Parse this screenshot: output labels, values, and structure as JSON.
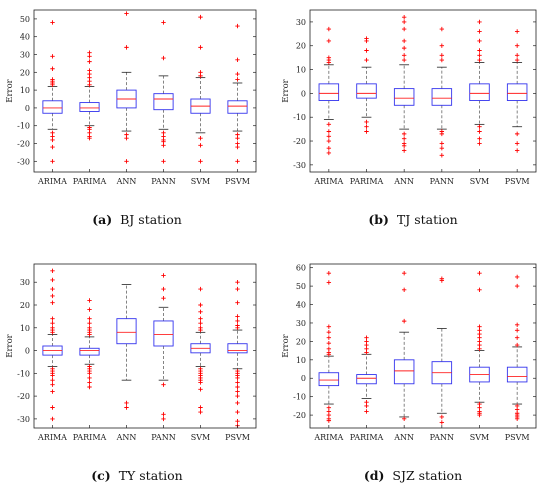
{
  "chart_data": [
    {
      "type": "box",
      "panel_label": "(a)",
      "caption": "BJ station",
      "ylabel": "Error",
      "ylim": [
        -36,
        55
      ],
      "yticks": [
        -30,
        -20,
        -10,
        0,
        10,
        20,
        30,
        40,
        50
      ],
      "categories": [
        "ARIMA",
        "PARIMA",
        "ANN",
        "PANN",
        "SVM",
        "PSVM"
      ],
      "boxes": [
        {
          "q1": -3,
          "median": 0,
          "q3": 4,
          "whisker_low": -12,
          "whisker_high": 12,
          "outliers": [
            48,
            29,
            22,
            16,
            15,
            14,
            13,
            -14,
            -16,
            -18,
            -22,
            -30
          ]
        },
        {
          "q1": -2,
          "median": 0,
          "q3": 3,
          "whisker_low": -10,
          "whisker_high": 12,
          "outliers": [
            31,
            29,
            26,
            21,
            19,
            17,
            15,
            13,
            -11,
            -12,
            -14,
            -16,
            -17
          ]
        },
        {
          "q1": 0,
          "median": 5,
          "q3": 10,
          "whisker_low": -13,
          "whisker_high": 20,
          "outliers": [
            53,
            34,
            -15,
            -17,
            -30
          ]
        },
        {
          "q1": -1,
          "median": 5,
          "q3": 8,
          "whisker_low": -12,
          "whisker_high": 18,
          "outliers": [
            48,
            28,
            -14,
            -16,
            -18,
            -19,
            -21,
            -30
          ]
        },
        {
          "q1": -3,
          "median": 1,
          "q3": 5,
          "whisker_low": -14,
          "whisker_high": 17,
          "outliers": [
            51,
            34,
            18,
            20,
            -17,
            -21,
            -30
          ]
        },
        {
          "q1": -3,
          "median": 1,
          "q3": 4,
          "whisker_low": -13,
          "whisker_high": 14,
          "outliers": [
            46,
            27,
            19,
            16,
            -15,
            -17,
            -20,
            -22,
            -30
          ]
        }
      ]
    },
    {
      "type": "box",
      "panel_label": "(b)",
      "caption": "TJ station",
      "ylabel": "Error",
      "ylim": [
        -33,
        35
      ],
      "yticks": [
        -30,
        -20,
        -10,
        0,
        10,
        20,
        30
      ],
      "categories": [
        "ARIMA",
        "PARIMA",
        "ANN",
        "PANN",
        "SVM",
        "PSVM"
      ],
      "boxes": [
        {
          "q1": -3,
          "median": 0,
          "q3": 4,
          "whisker_low": -11,
          "whisker_high": 12,
          "outliers": [
            27,
            22,
            15,
            14,
            13,
            -13,
            -16,
            -18,
            -20,
            -23,
            -25
          ]
        },
        {
          "q1": -2,
          "median": 0,
          "q3": 4,
          "whisker_low": -10,
          "whisker_high": 11,
          "outliers": [
            23,
            22,
            18,
            14,
            -12,
            -14,
            -16
          ]
        },
        {
          "q1": -5,
          "median": -2,
          "q3": 2,
          "whisker_low": -15,
          "whisker_high": 12,
          "outliers": [
            32,
            30,
            27,
            22,
            19,
            16,
            14,
            -17,
            -19,
            -21,
            -22,
            -24
          ]
        },
        {
          "q1": -5,
          "median": -2,
          "q3": 2,
          "whisker_low": -15,
          "whisker_high": 11,
          "outliers": [
            27,
            20,
            16,
            14,
            -16,
            -17,
            -21,
            -23,
            -26
          ]
        },
        {
          "q1": -3,
          "median": 0,
          "q3": 4,
          "whisker_low": -13,
          "whisker_high": 13,
          "outliers": [
            30,
            26,
            22,
            18,
            16,
            14,
            -14,
            -16,
            -19,
            -21
          ]
        },
        {
          "q1": -3,
          "median": 0,
          "q3": 4,
          "whisker_low": -14,
          "whisker_high": 13,
          "outliers": [
            26,
            20,
            16,
            14,
            -17,
            -21,
            -24
          ]
        }
      ]
    },
    {
      "type": "box",
      "panel_label": "(c)",
      "caption": "TY station",
      "ylabel": "Error",
      "ylim": [
        -34,
        38
      ],
      "yticks": [
        -30,
        -20,
        -10,
        0,
        10,
        20,
        30
      ],
      "categories": [
        "ARIMA",
        "PARIMA",
        "ANN",
        "PANN",
        "SVM",
        "PSVM"
      ],
      "boxes": [
        {
          "q1": -2,
          "median": 0,
          "q3": 2,
          "whisker_low": -7,
          "whisker_high": 7,
          "outliers": [
            35,
            31,
            27,
            24,
            21,
            14,
            12,
            10,
            9,
            8,
            -8,
            -9,
            -10,
            -11,
            -13,
            -15,
            -18,
            -25,
            -30
          ]
        },
        {
          "q1": -2,
          "median": 0,
          "q3": 1,
          "whisker_low": -6,
          "whisker_high": 6,
          "outliers": [
            22,
            18,
            14,
            12,
            10,
            9,
            8,
            7,
            -7,
            -8,
            -9,
            -10,
            -12,
            -14,
            -16
          ]
        },
        {
          "q1": 3,
          "median": 8,
          "q3": 14,
          "whisker_low": -13,
          "whisker_high": 29,
          "outliers": [
            -23,
            -25
          ]
        },
        {
          "q1": 2,
          "median": 7,
          "q3": 13,
          "whisker_low": -13,
          "whisker_high": 19,
          "outliers": [
            33,
            27,
            23,
            -15,
            -28,
            -30
          ]
        },
        {
          "q1": -1,
          "median": 1,
          "q3": 3,
          "whisker_low": -7,
          "whisker_high": 8,
          "outliers": [
            27,
            20,
            17,
            14,
            12,
            10,
            9,
            -8,
            -9,
            -10,
            -11,
            -12,
            -13,
            -14,
            -17,
            -25,
            -27
          ]
        },
        {
          "q1": -1,
          "median": 0,
          "q3": 3,
          "whisker_low": -8,
          "whisker_high": 9,
          "outliers": [
            30,
            27,
            21,
            15,
            13,
            11,
            10,
            -9,
            -10,
            -11,
            -12,
            -14,
            -16,
            -18,
            -20,
            -23,
            -27,
            -31,
            -33
          ]
        }
      ]
    },
    {
      "type": "box",
      "panel_label": "(d)",
      "caption": "SJZ station",
      "ylabel": "Error",
      "ylim": [
        -27,
        62
      ],
      "yticks": [
        -20,
        -10,
        0,
        10,
        20,
        30,
        40,
        50,
        60
      ],
      "categories": [
        "ARIMA",
        "PARIMA",
        "ANN",
        "PANN",
        "SVM",
        "PSVM"
      ],
      "boxes": [
        {
          "q1": -4,
          "median": -1,
          "q3": 3,
          "whisker_low": -14,
          "whisker_high": 12,
          "outliers": [
            57,
            52,
            28,
            25,
            22,
            19,
            16,
            14,
            13,
            -16,
            -18,
            -20,
            -22,
            -23
          ]
        },
        {
          "q1": -3,
          "median": 0,
          "q3": 2,
          "whisker_low": -11,
          "whisker_high": 13,
          "outliers": [
            22,
            20,
            18,
            16,
            14,
            -13,
            -15,
            -18
          ]
        },
        {
          "q1": -3,
          "median": 4,
          "q3": 10,
          "whisker_low": -21,
          "whisker_high": 25,
          "outliers": [
            57,
            48,
            31,
            -22
          ]
        },
        {
          "q1": -3,
          "median": 3,
          "q3": 9,
          "whisker_low": -19,
          "whisker_high": 27,
          "outliers": [
            54,
            53,
            -21,
            -24
          ]
        },
        {
          "q1": -2,
          "median": 2,
          "q3": 6,
          "whisker_low": -13,
          "whisker_high": 15,
          "outliers": [
            57,
            48,
            28,
            26,
            24,
            22,
            20,
            18,
            16,
            -14,
            -16,
            -18,
            -19,
            -20
          ]
        },
        {
          "q1": -2,
          "median": 1,
          "q3": 6,
          "whisker_low": -14,
          "whisker_high": 17,
          "outliers": [
            55,
            50,
            29,
            26,
            22,
            18,
            -15,
            -17,
            -19,
            -20,
            -21,
            -22
          ]
        }
      ]
    }
  ],
  "colors": {
    "box": "#3333ee",
    "median": "#ff2222",
    "whisker": "#666666",
    "outlier": "#ff0000",
    "axis": "#222222"
  }
}
